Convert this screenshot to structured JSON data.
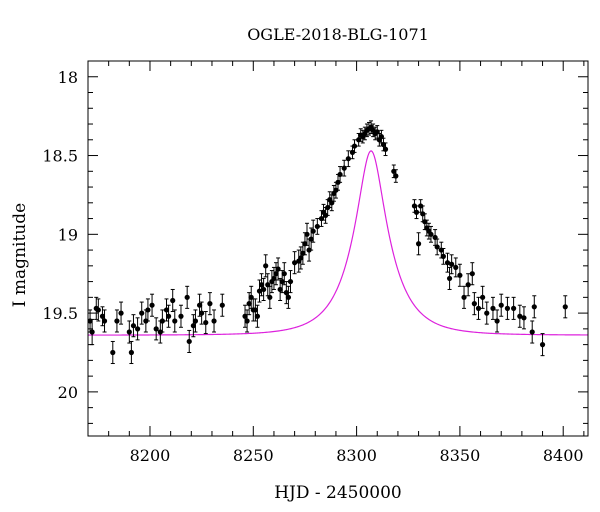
{
  "chart_data": {
    "type": "scatter",
    "title": "OGLE-2018-BLG-1071",
    "xlabel": "HJD - 2450000",
    "ylabel": "I magnitude",
    "xlim": [
      8170,
      8412
    ],
    "ylim": [
      17.9,
      20.28
    ],
    "y_inverted": true,
    "grid": false,
    "x_ticks": [
      8200,
      8250,
      8300,
      8350,
      8400
    ],
    "x_tick_labels": [
      "8200",
      "8250",
      "8300",
      "8350",
      "8400"
    ],
    "y_ticks": [
      18,
      18.5,
      19,
      19.5,
      20
    ],
    "y_tick_labels": [
      "18",
      "18.5",
      "19",
      "19.5",
      "20"
    ],
    "colors": {
      "data": "#000000",
      "model": "#dd22dd"
    },
    "series": [
      {
        "kind": "points_with_errorbars",
        "points": [
          [
            8171,
            19.55,
            0.07
          ],
          [
            8172,
            19.62,
            0.08
          ],
          [
            8174,
            19.47,
            0.07
          ],
          [
            8175,
            19.48,
            0.07
          ],
          [
            8177,
            19.52,
            0.06
          ],
          [
            8178,
            19.55,
            0.07
          ],
          [
            8182,
            19.75,
            0.07
          ],
          [
            8184,
            19.55,
            0.07
          ],
          [
            8186,
            19.5,
            0.07
          ],
          [
            8190,
            19.62,
            0.07
          ],
          [
            8191,
            19.75,
            0.07
          ],
          [
            8192,
            19.58,
            0.07
          ],
          [
            8194,
            19.6,
            0.07
          ],
          [
            8196,
            19.5,
            0.07
          ],
          [
            8198,
            19.55,
            0.07
          ],
          [
            8199,
            19.48,
            0.07
          ],
          [
            8201,
            19.45,
            0.07
          ],
          [
            8203,
            19.6,
            0.07
          ],
          [
            8205,
            19.62,
            0.07
          ],
          [
            8206,
            19.55,
            0.07
          ],
          [
            8208,
            19.48,
            0.07
          ],
          [
            8209,
            19.52,
            0.07
          ],
          [
            8211,
            19.42,
            0.07
          ],
          [
            8212,
            19.55,
            0.07
          ],
          [
            8215,
            19.52,
            0.07
          ],
          [
            8218,
            19.4,
            0.07
          ],
          [
            8219,
            19.68,
            0.07
          ],
          [
            8221,
            19.58,
            0.07
          ],
          [
            8222,
            19.55,
            0.07
          ],
          [
            8224,
            19.45,
            0.07
          ],
          [
            8225,
            19.5,
            0.07
          ],
          [
            8227,
            19.56,
            0.07
          ],
          [
            8229,
            19.44,
            0.07
          ],
          [
            8231,
            19.55,
            0.07
          ],
          [
            8235,
            19.45,
            0.07
          ],
          [
            8246,
            19.52,
            0.07
          ],
          [
            8247,
            19.55,
            0.07
          ],
          [
            8248,
            19.44,
            0.07
          ],
          [
            8249,
            19.4,
            0.07
          ],
          [
            8250,
            19.48,
            0.07
          ],
          [
            8251,
            19.48,
            0.07
          ],
          [
            8252,
            19.52,
            0.07
          ],
          [
            8253,
            19.36,
            0.07
          ],
          [
            8254,
            19.32,
            0.07
          ],
          [
            8255,
            19.35,
            0.07
          ],
          [
            8256,
            19.2,
            0.07
          ],
          [
            8257,
            19.32,
            0.07
          ],
          [
            8258,
            19.4,
            0.07
          ],
          [
            8259,
            19.3,
            0.07
          ],
          [
            8260,
            19.28,
            0.07
          ],
          [
            8261,
            19.25,
            0.07
          ],
          [
            8262,
            19.22,
            0.07
          ],
          [
            8263,
            19.35,
            0.07
          ],
          [
            8264,
            19.3,
            0.07
          ],
          [
            8265,
            19.25,
            0.07
          ],
          [
            8266,
            19.37,
            0.07
          ],
          [
            8267,
            19.4,
            0.07
          ],
          [
            8268,
            19.3,
            0.07
          ],
          [
            8270,
            19.18,
            0.07
          ],
          [
            8272,
            19.17,
            0.07
          ],
          [
            8273,
            19.15,
            0.07
          ],
          [
            8274,
            19.12,
            0.07
          ],
          [
            8275,
            19.06,
            0.07
          ],
          [
            8276,
            19.0,
            0.07
          ],
          [
            8277,
            19.1,
            0.07
          ],
          [
            8278,
            19.03,
            0.07
          ],
          [
            8279,
            18.98,
            0.07
          ],
          [
            8281,
            18.95,
            0.05
          ],
          [
            8283,
            18.9,
            0.05
          ],
          [
            8284,
            18.86,
            0.05
          ],
          [
            8285,
            18.88,
            0.05
          ],
          [
            8286,
            18.83,
            0.05
          ],
          [
            8287,
            18.78,
            0.05
          ],
          [
            8288,
            18.8,
            0.05
          ],
          [
            8289,
            18.74,
            0.05
          ],
          [
            8290,
            18.72,
            0.05
          ],
          [
            8291,
            18.67,
            0.05
          ],
          [
            8292,
            18.62,
            0.05
          ],
          [
            8294,
            18.58,
            0.05
          ],
          [
            8296,
            18.52,
            0.05
          ],
          [
            8298,
            18.48,
            0.04
          ],
          [
            8299,
            18.44,
            0.04
          ],
          [
            8301,
            18.4,
            0.04
          ],
          [
            8302,
            18.37,
            0.04
          ],
          [
            8303,
            18.38,
            0.04
          ],
          [
            8304,
            18.36,
            0.04
          ],
          [
            8305,
            18.34,
            0.04
          ],
          [
            8306,
            18.33,
            0.04
          ],
          [
            8307,
            18.32,
            0.04
          ],
          [
            8308,
            18.34,
            0.04
          ],
          [
            8309,
            18.36,
            0.04
          ],
          [
            8310,
            18.35,
            0.04
          ],
          [
            8311,
            18.4,
            0.04
          ],
          [
            8312,
            18.38,
            0.04
          ],
          [
            8313,
            18.43,
            0.04
          ],
          [
            8314,
            18.46,
            0.04
          ],
          [
            8318,
            18.6,
            0.04
          ],
          [
            8319,
            18.63,
            0.04
          ],
          [
            8328,
            18.82,
            0.04
          ],
          [
            8329,
            18.86,
            0.04
          ],
          [
            8330,
            19.06,
            0.07
          ],
          [
            8331,
            18.82,
            0.04
          ],
          [
            8332,
            18.87,
            0.05
          ],
          [
            8333,
            18.92,
            0.05
          ],
          [
            8334,
            18.96,
            0.05
          ],
          [
            8335,
            18.98,
            0.05
          ],
          [
            8336,
            19.0,
            0.05
          ],
          [
            8338,
            19.02,
            0.05
          ],
          [
            8339,
            19.08,
            0.05
          ],
          [
            8341,
            19.1,
            0.05
          ],
          [
            8342,
            19.14,
            0.05
          ],
          [
            8344,
            19.18,
            0.06
          ],
          [
            8345,
            19.28,
            0.07
          ],
          [
            8346,
            19.19,
            0.06
          ],
          [
            8348,
            19.21,
            0.06
          ],
          [
            8350,
            19.26,
            0.07
          ],
          [
            8352,
            19.4,
            0.07
          ],
          [
            8354,
            19.32,
            0.07
          ],
          [
            8356,
            19.25,
            0.07
          ],
          [
            8357,
            19.44,
            0.07
          ],
          [
            8359,
            19.47,
            0.07
          ],
          [
            8361,
            19.4,
            0.07
          ],
          [
            8363,
            19.5,
            0.07
          ],
          [
            8366,
            19.47,
            0.07
          ],
          [
            8368,
            19.55,
            0.07
          ],
          [
            8370,
            19.45,
            0.07
          ],
          [
            8373,
            19.47,
            0.07
          ],
          [
            8376,
            19.47,
            0.07
          ],
          [
            8379,
            19.52,
            0.07
          ],
          [
            8381,
            19.53,
            0.07
          ],
          [
            8385,
            19.62,
            0.07
          ],
          [
            8386,
            19.46,
            0.07
          ],
          [
            8390,
            19.7,
            0.07
          ],
          [
            8401,
            19.46,
            0.07
          ]
        ]
      },
      {
        "kind": "model_curve",
        "name": "",
        "t0": 8307,
        "tE": 17.5,
        "u0": 0.33,
        "baseline_mag": 19.64,
        "blend_fraction": 0.9
      }
    ]
  }
}
